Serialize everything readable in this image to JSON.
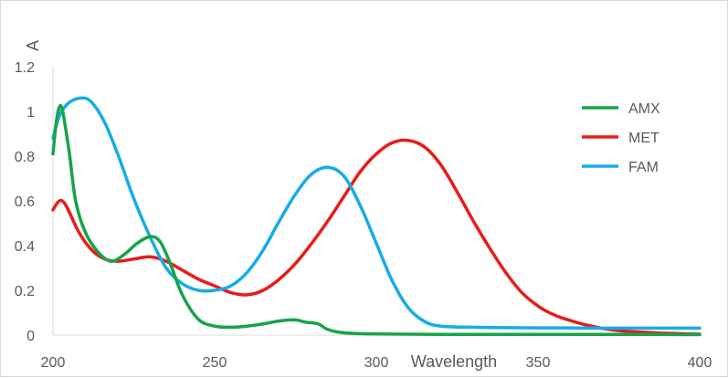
{
  "chart_data": {
    "type": "line",
    "title": "",
    "xlabel": "Wavelength",
    "ylabel": "A",
    "xlim": [
      200,
      400
    ],
    "ylim": [
      0,
      1.2
    ],
    "x_ticks": [
      "200",
      "250",
      "300",
      "350",
      "400"
    ],
    "y_ticks": [
      "0",
      "0.2",
      "0.4",
      "0.6",
      "0.8",
      "1",
      "1.2"
    ],
    "grid": false,
    "legend": "right",
    "series": [
      {
        "name": "AMX",
        "color": "#17a34a",
        "points": [
          [
            200,
            0.81
          ],
          [
            201,
            0.95
          ],
          [
            202,
            1.02
          ],
          [
            203,
            1.0
          ],
          [
            205,
            0.82
          ],
          [
            207,
            0.6
          ],
          [
            210,
            0.46
          ],
          [
            214,
            0.37
          ],
          [
            218,
            0.33
          ],
          [
            222,
            0.36
          ],
          [
            226,
            0.41
          ],
          [
            230,
            0.44
          ],
          [
            233,
            0.42
          ],
          [
            236,
            0.33
          ],
          [
            240,
            0.18
          ],
          [
            245,
            0.07
          ],
          [
            250,
            0.04
          ],
          [
            255,
            0.035
          ],
          [
            260,
            0.04
          ],
          [
            265,
            0.05
          ],
          [
            270,
            0.063
          ],
          [
            275,
            0.068
          ],
          [
            278,
            0.058
          ],
          [
            282,
            0.05
          ],
          [
            285,
            0.025
          ],
          [
            290,
            0.01
          ],
          [
            300,
            0.005
          ],
          [
            320,
            0.003
          ],
          [
            350,
            0.003
          ],
          [
            380,
            0.003
          ],
          [
            400,
            0.002
          ]
        ]
      },
      {
        "name": "MET",
        "color": "#e81c17",
        "points": [
          [
            200,
            0.56
          ],
          [
            202,
            0.6
          ],
          [
            204,
            0.58
          ],
          [
            208,
            0.46
          ],
          [
            212,
            0.38
          ],
          [
            216,
            0.34
          ],
          [
            220,
            0.33
          ],
          [
            225,
            0.34
          ],
          [
            230,
            0.35
          ],
          [
            235,
            0.33
          ],
          [
            240,
            0.29
          ],
          [
            245,
            0.25
          ],
          [
            250,
            0.22
          ],
          [
            255,
            0.19
          ],
          [
            260,
            0.18
          ],
          [
            265,
            0.2
          ],
          [
            270,
            0.25
          ],
          [
            275,
            0.32
          ],
          [
            280,
            0.41
          ],
          [
            285,
            0.51
          ],
          [
            290,
            0.62
          ],
          [
            295,
            0.73
          ],
          [
            300,
            0.81
          ],
          [
            305,
            0.86
          ],
          [
            310,
            0.87
          ],
          [
            315,
            0.84
          ],
          [
            320,
            0.76
          ],
          [
            325,
            0.64
          ],
          [
            330,
            0.51
          ],
          [
            335,
            0.39
          ],
          [
            340,
            0.28
          ],
          [
            345,
            0.19
          ],
          [
            350,
            0.13
          ],
          [
            355,
            0.09
          ],
          [
            360,
            0.065
          ],
          [
            365,
            0.045
          ],
          [
            370,
            0.03
          ],
          [
            375,
            0.02
          ],
          [
            380,
            0.015
          ],
          [
            390,
            0.008
          ],
          [
            400,
            0.004
          ]
        ]
      },
      {
        "name": "FAM",
        "color": "#17ace8",
        "points": [
          [
            200,
            0.88
          ],
          [
            202,
            0.98
          ],
          [
            205,
            1.04
          ],
          [
            209,
            1.06
          ],
          [
            212,
            1.04
          ],
          [
            216,
            0.95
          ],
          [
            220,
            0.81
          ],
          [
            225,
            0.61
          ],
          [
            230,
            0.44
          ],
          [
            235,
            0.3
          ],
          [
            240,
            0.23
          ],
          [
            245,
            0.2
          ],
          [
            250,
            0.2
          ],
          [
            255,
            0.22
          ],
          [
            260,
            0.28
          ],
          [
            265,
            0.38
          ],
          [
            270,
            0.51
          ],
          [
            275,
            0.63
          ],
          [
            280,
            0.72
          ],
          [
            285,
            0.75
          ],
          [
            290,
            0.71
          ],
          [
            295,
            0.58
          ],
          [
            300,
            0.41
          ],
          [
            305,
            0.24
          ],
          [
            310,
            0.12
          ],
          [
            315,
            0.06
          ],
          [
            320,
            0.04
          ],
          [
            330,
            0.035
          ],
          [
            340,
            0.033
          ],
          [
            350,
            0.032
          ],
          [
            360,
            0.032
          ],
          [
            370,
            0.031
          ],
          [
            380,
            0.031
          ],
          [
            390,
            0.031
          ],
          [
            400,
            0.031
          ]
        ]
      }
    ]
  }
}
